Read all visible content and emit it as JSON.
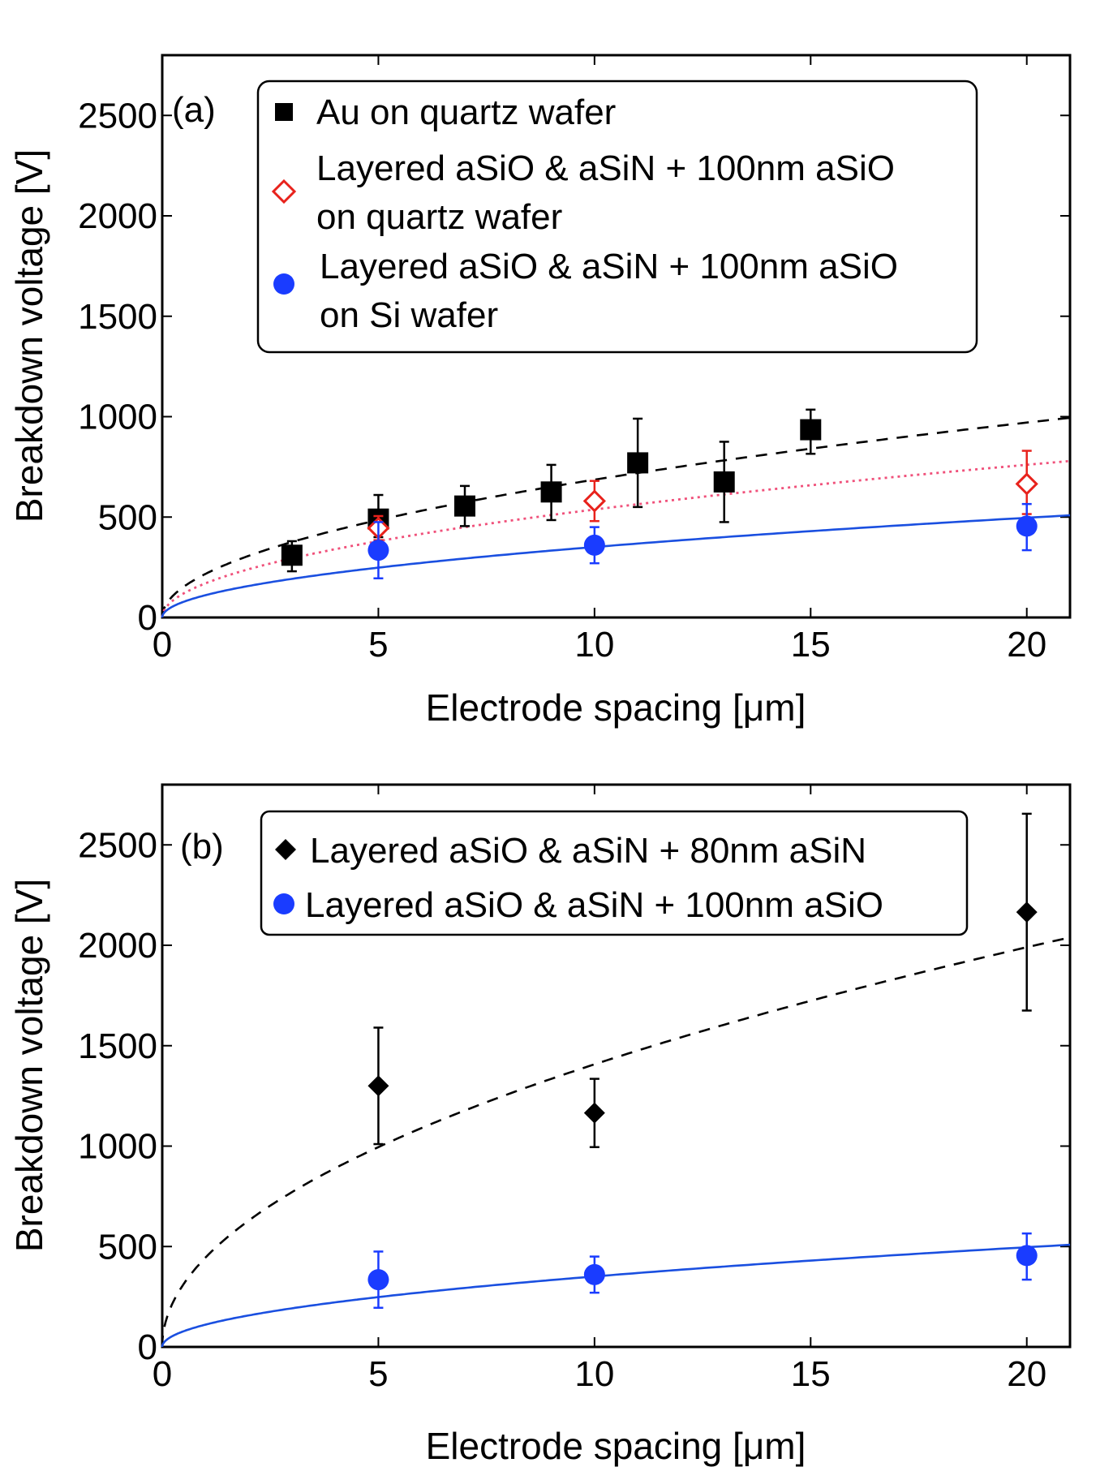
{
  "chart_data": [
    {
      "type": "scatter",
      "panel_label": "(a)",
      "xlabel": "Electrode spacing [μm]",
      "ylabel": "Breakdown voltage [V]",
      "xlim": [
        0,
        21
      ],
      "ylim": [
        0,
        2800
      ],
      "xticks": [
        0,
        5,
        10,
        15,
        20
      ],
      "yticks": [
        0,
        500,
        1000,
        1500,
        2000,
        2500
      ],
      "xtick_labels": [
        "0",
        "5",
        "10",
        "15",
        "20"
      ],
      "ytick_labels": [
        "0",
        "500",
        "1000",
        "1500",
        "2000",
        "2500"
      ],
      "legend_position": "top",
      "series": [
        {
          "name": "Au on quartz wafer",
          "legend_lines": [
            "Au on quartz wafer"
          ],
          "marker": "square",
          "color": "#000000",
          "x": [
            3,
            5,
            7,
            9,
            11,
            13,
            15
          ],
          "y": [
            310,
            490,
            555,
            625,
            770,
            675,
            935
          ],
          "yerr_low": [
            80,
            90,
            100,
            140,
            220,
            200,
            120
          ],
          "yerr_high": [
            70,
            120,
            100,
            135,
            220,
            200,
            100
          ]
        },
        {
          "name": "Layered aSiO & aSiN + 100nm aSiO on quartz wafer",
          "legend_lines": [
            "Layered aSiO & aSiN + 100nm aSiO",
            "on quartz wafer"
          ],
          "marker": "diamond-open",
          "color": "#e8221c",
          "x": [
            5,
            10,
            20
          ],
          "y": [
            445,
            580,
            665
          ],
          "yerr_low": [
            60,
            100,
            150
          ],
          "yerr_high": [
            60,
            100,
            165
          ]
        },
        {
          "name": "Layered aSiO & aSiN + 100nm aSiO on Si wafer",
          "legend_lines": [
            "Layered aSiO & aSiN + 100nm aSiO",
            "on Si wafer"
          ],
          "marker": "circle",
          "color": "#1a3cff",
          "x": [
            5,
            10,
            20
          ],
          "y": [
            335,
            360,
            455
          ],
          "yerr_low": [
            140,
            90,
            120
          ],
          "yerr_high": [
            140,
            90,
            110
          ]
        }
      ],
      "fits": [
        {
          "style": "dashed",
          "color": "#000000",
          "coef": 217,
          "exp": 0.5
        },
        {
          "style": "dotted",
          "color": "#f0507a",
          "coef": 170,
          "exp": 0.5
        },
        {
          "style": "solid",
          "color": "#1a4fe0",
          "coef": 111,
          "exp": 0.5
        }
      ]
    },
    {
      "type": "scatter",
      "panel_label": "(b)",
      "xlabel": "Electrode spacing [μm]",
      "ylabel": "Breakdown voltage [V]",
      "xlim": [
        0,
        21
      ],
      "ylim": [
        0,
        2800
      ],
      "xticks": [
        0,
        5,
        10,
        15,
        20
      ],
      "yticks": [
        0,
        500,
        1000,
        1500,
        2000,
        2500
      ],
      "xtick_labels": [
        "0",
        "5",
        "10",
        "15",
        "20"
      ],
      "ytick_labels": [
        "0",
        "500",
        "1000",
        "1500",
        "2000",
        "2500"
      ],
      "legend_position": "top",
      "series": [
        {
          "name": "Layered aSiO & aSiN + 80nm aSiN",
          "legend_lines": [
            "Layered aSiO & aSiN + 80nm aSiN"
          ],
          "marker": "diamond",
          "color": "#000000",
          "x": [
            5,
            10,
            20
          ],
          "y": [
            1300,
            1165,
            2165
          ],
          "yerr_low": [
            290,
            170,
            490
          ],
          "yerr_high": [
            290,
            170,
            490
          ]
        },
        {
          "name": "Layered aSiO & aSiN + 100nm aSiO",
          "legend_lines": [
            "Layered aSiO & aSiN + 100nm aSiO"
          ],
          "marker": "circle",
          "color": "#1a3cff",
          "x": [
            5,
            10,
            20
          ],
          "y": [
            335,
            360,
            455
          ],
          "yerr_low": [
            140,
            90,
            120
          ],
          "yerr_high": [
            140,
            90,
            110
          ]
        }
      ],
      "fits": [
        {
          "style": "dashed",
          "color": "#000000",
          "coef": 445,
          "exp": 0.5
        },
        {
          "style": "solid",
          "color": "#1a4fe0",
          "coef": 111,
          "exp": 0.5
        }
      ]
    }
  ]
}
